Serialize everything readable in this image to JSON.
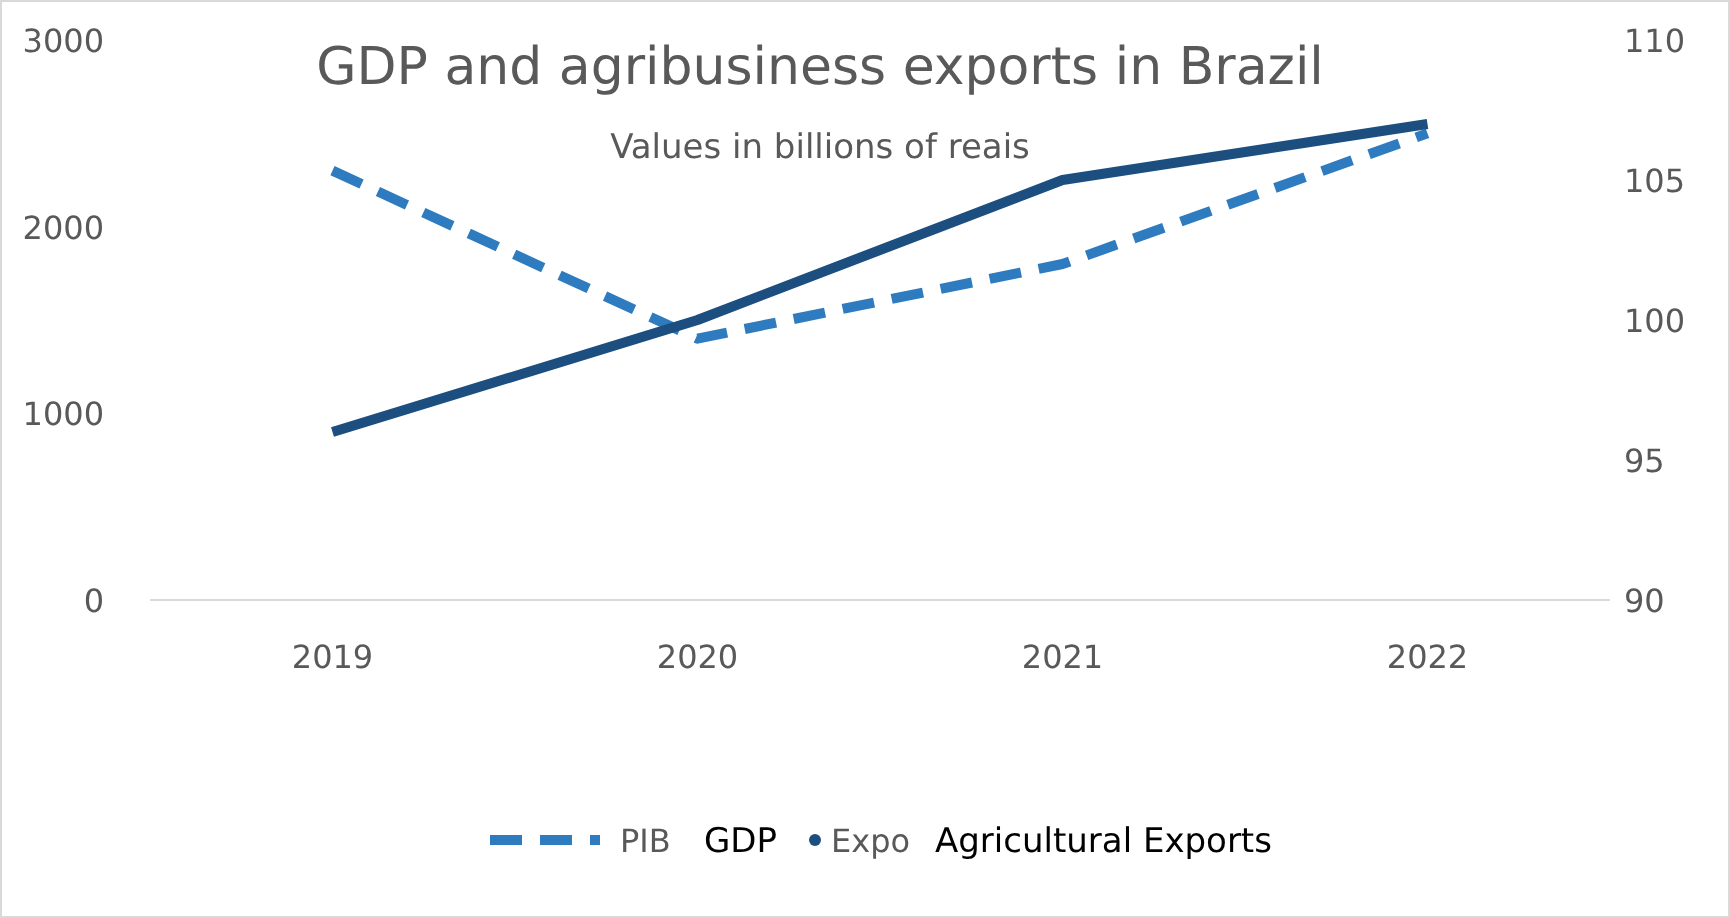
{
  "chart_data": {
    "type": "line",
    "title": "GDP and agribusiness exports in Brazil",
    "subtitle": "Values in billions of reais",
    "categories": [
      "2019",
      "2020",
      "2021",
      "2022"
    ],
    "series": [
      {
        "name": "PIB",
        "color": "#2e7bbf",
        "values": [
          2300,
          1400,
          1800,
          2500
        ],
        "line_style": "dashed"
      },
      {
        "name": "Expo",
        "color": "#1c4e80",
        "values": [
          96,
          100,
          105,
          107
        ],
        "axis": "y2",
        "line_style": "solid"
      }
    ],
    "ylim": [
      0,
      3000
    ],
    "yticks": [
      0,
      1000,
      2000,
      3000
    ],
    "y2lim": [
      90,
      110
    ],
    "y2ticks": [
      90,
      95,
      100,
      105,
      110
    ],
    "annotations": [
      "GDP",
      "Agricultural Exports"
    ],
    "grid": false,
    "legend": "bottom",
    "marker": "none"
  }
}
